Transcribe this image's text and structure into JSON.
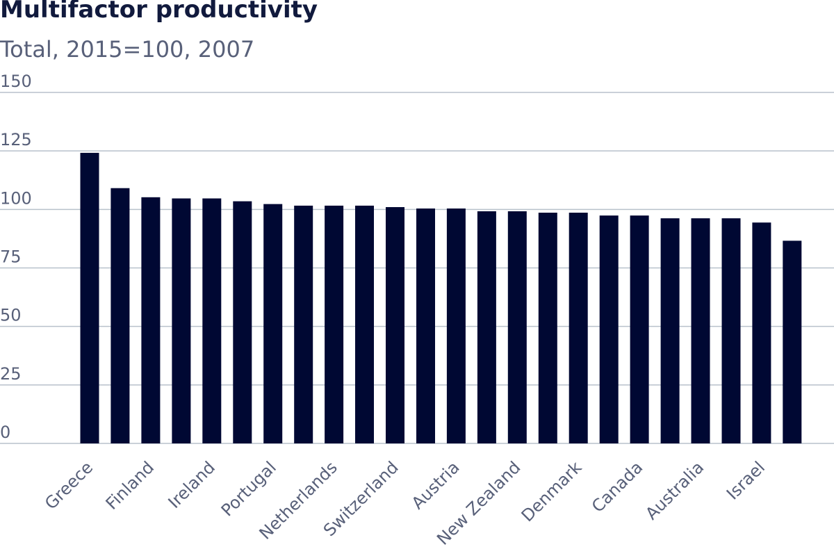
{
  "chart_data": {
    "type": "bar",
    "title": "Multifactor productivity",
    "subtitle": "Total, 2015=100, 2007",
    "xlabel": "",
    "ylabel": "",
    "ylim": [
      0,
      150
    ],
    "yticks": [
      0,
      25,
      50,
      75,
      100,
      125,
      150
    ],
    "grid": true,
    "bar_color": "#000833",
    "grid_color": "#b8c1cb",
    "categories": [
      "Greece",
      "",
      "Finland",
      "",
      "Ireland",
      "",
      "Portugal",
      "",
      "Netherlands",
      "",
      "Switzerland",
      "",
      "Austria",
      "",
      "New Zealand",
      "",
      "Denmark",
      "",
      "Canada",
      "",
      "Australia",
      "",
      "Israel",
      ""
    ],
    "values": [
      124.2,
      109.1,
      105.2,
      104.7,
      104.7,
      103.5,
      102.3,
      101.6,
      101.6,
      101.6,
      101.0,
      100.4,
      100.4,
      99.2,
      99.2,
      98.6,
      98.6,
      97.4,
      97.4,
      96.2,
      96.2,
      96.2,
      94.4,
      86.6
    ]
  }
}
